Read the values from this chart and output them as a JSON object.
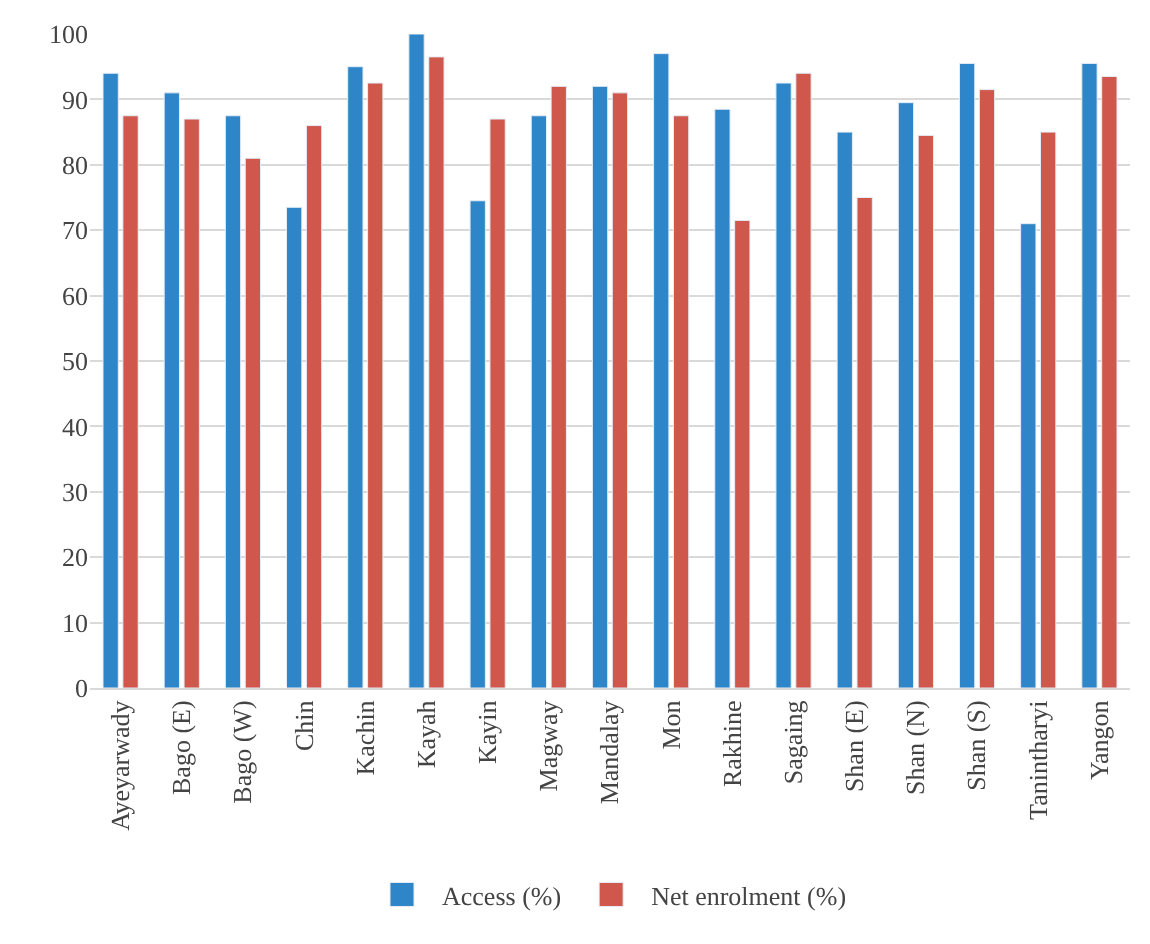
{
  "chart_data": {
    "type": "bar",
    "categories": [
      "Ayeyarwady",
      "Bago (E)",
      "Bago (W)",
      "Chin",
      "Kachin",
      "Kayah",
      "Kayin",
      "Magway",
      "Mandalay",
      "Mon",
      "Rakhine",
      "Sagaing",
      "Shan (E)",
      "Shan (N)",
      "Shan (S)",
      "Tanintharyi",
      "Yangon"
    ],
    "series": [
      {
        "name": "Access (%)",
        "color": "#2e86c8",
        "values": [
          94,
          91,
          87.5,
          73.5,
          95,
          100,
          74.5,
          87.5,
          92,
          97,
          88.5,
          92.5,
          85,
          89.5,
          95.5,
          71,
          95.5
        ]
      },
      {
        "name": "Net enrolment (%)",
        "color": "#d0574b",
        "values": [
          87.5,
          87,
          81,
          86,
          92.5,
          96.5,
          87,
          92,
          91,
          87.5,
          71.5,
          94,
          75,
          84.5,
          91.5,
          85,
          93.5
        ]
      }
    ],
    "ylim": [
      0,
      100
    ],
    "yticks": [
      0,
      10,
      20,
      30,
      40,
      50,
      60,
      70,
      80,
      90,
      100
    ],
    "grid": "y",
    "legend": "bottom"
  }
}
